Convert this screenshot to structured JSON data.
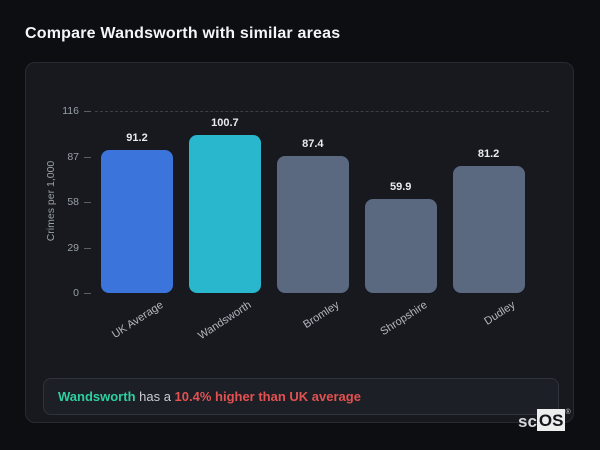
{
  "page": {
    "title": "Compare Wandsworth with similar areas"
  },
  "chart_data": {
    "type": "bar",
    "title": "Compare Wandsworth with similar areas",
    "categories": [
      "UK Average",
      "Wandsworth",
      "Bromley",
      "Shropshire",
      "Dudley"
    ],
    "values": [
      91.2,
      100.7,
      87.4,
      59.9,
      81.2
    ],
    "value_labels": [
      "91.2",
      "100.7",
      "87.4",
      "59.9",
      "81.2"
    ],
    "xlabel": "",
    "ylabel": "Crimes per 1,000",
    "yticks": [
      0,
      29,
      58,
      87,
      116
    ],
    "ylim": [
      0,
      116
    ],
    "grid": "single dashed gridline at top tick (116)",
    "legend_position": "none",
    "bar_colors": [
      "#3b74da",
      "#29b7ce",
      "#5a6880",
      "#5a6880",
      "#5a6880"
    ],
    "highlight_index": 1,
    "accent_blue": "#3b74da",
    "accent_cyan": "#29b7ce",
    "neutral_bar": "#5a6880"
  },
  "note": {
    "subject": "Wandsworth",
    "middle": " has a ",
    "highlight": "10.4% higher than UK average",
    "subject_color": "#2ecfa0",
    "highlight_color": "#e35150"
  },
  "logo": {
    "prefix": "sc",
    "suffix": "OS",
    "registered": "®"
  }
}
